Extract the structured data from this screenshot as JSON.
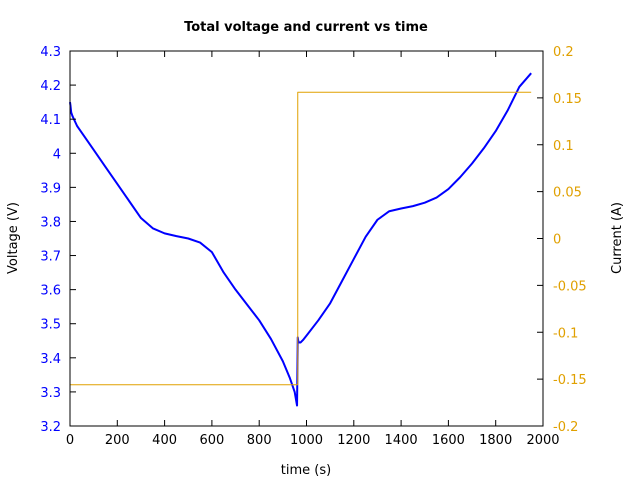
{
  "chart_data": {
    "type": "line",
    "title": "Total voltage and current vs time",
    "xlabel": "time (s)",
    "ylabel_left": "Voltage (V)",
    "ylabel_right": "Current (A)",
    "xlim": [
      0,
      2000
    ],
    "ylim_left": [
      3.2,
      4.3
    ],
    "ylim_right": [
      -0.2,
      0.2
    ],
    "xticks": [
      "0",
      "200",
      "400",
      "600",
      "800",
      "1000",
      "1200",
      "1400",
      "1600",
      "1800",
      "2000"
    ],
    "yticks_left": [
      "3.2",
      "3.3",
      "3.4",
      "3.5",
      "3.6",
      "3.7",
      "3.8",
      "3.9",
      "4",
      "4.1",
      "4.2",
      "4.3"
    ],
    "yticks_right": [
      "-0.2",
      "-0.15",
      "-0.1",
      "-0.05",
      "0",
      "0.05",
      "0.1",
      "0.15",
      "0.2"
    ],
    "grid": false,
    "colors": {
      "voltage": "#0000ff",
      "current": "#e0a000",
      "axes": "#000000"
    },
    "series": [
      {
        "axis": "left",
        "x": [
          0,
          2,
          5,
          10,
          30,
          60,
          100,
          150,
          200,
          250,
          300,
          350,
          400,
          450,
          500,
          550,
          600,
          650,
          700,
          750,
          800,
          850,
          900,
          930,
          950,
          960,
          963,
          965,
          968,
          975,
          985,
          1000,
          1050,
          1100,
          1150,
          1200,
          1250,
          1300,
          1350,
          1400,
          1450,
          1500,
          1550,
          1600,
          1650,
          1700,
          1750,
          1800,
          1850,
          1900,
          1950
        ],
        "y": [
          4.15,
          4.14,
          4.12,
          4.11,
          4.08,
          4.05,
          4.01,
          3.96,
          3.91,
          3.86,
          3.81,
          3.78,
          3.765,
          3.757,
          3.75,
          3.738,
          3.71,
          3.65,
          3.6,
          3.555,
          3.51,
          3.455,
          3.39,
          3.34,
          3.3,
          3.26,
          3.46,
          3.45,
          3.445,
          3.445,
          3.452,
          3.465,
          3.51,
          3.56,
          3.625,
          3.69,
          3.755,
          3.805,
          3.83,
          3.838,
          3.845,
          3.855,
          3.87,
          3.895,
          3.93,
          3.97,
          4.015,
          4.065,
          4.125,
          4.195,
          4.235
        ]
      },
      {
        "axis": "right",
        "x": [
          0,
          963,
          963,
          1950
        ],
        "y": [
          -0.156,
          -0.156,
          0.156,
          0.156
        ]
      }
    ]
  }
}
